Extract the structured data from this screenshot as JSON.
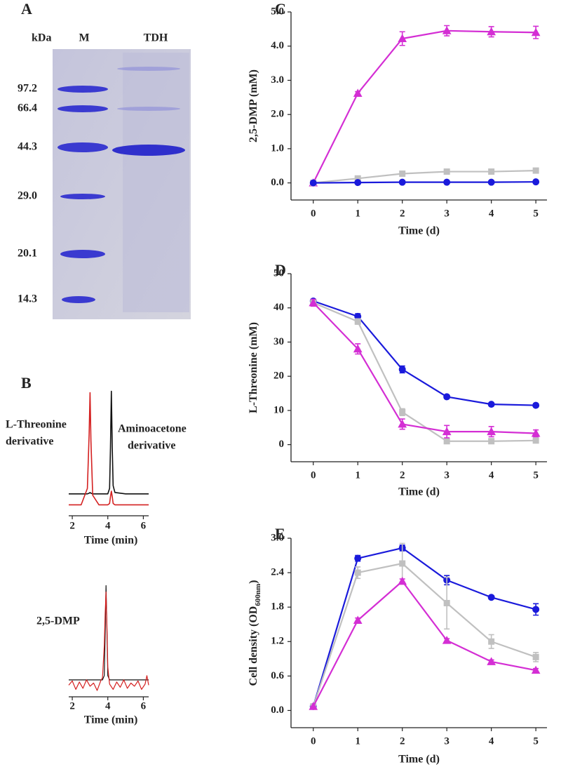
{
  "gel": {
    "panel_label": "A",
    "header": [
      "kDa",
      "M",
      "TDH"
    ],
    "markers": [
      "97.2",
      "66.4",
      "44.3",
      "29.0",
      "20.1",
      "14.3"
    ]
  },
  "chart_data": [
    {
      "type": "line",
      "panel_label": "B",
      "x_label": "Time (min)",
      "labels": [
        "L-Threonine",
        "derivative",
        "Aminoacetone",
        "derivative"
      ],
      "x": [
        1.8,
        2.5,
        2.85,
        2.95,
        3.0,
        3.05,
        3.15,
        3.5,
        4.0,
        4.1,
        4.15,
        4.2,
        4.25,
        4.3,
        4.4,
        5.0,
        6.3
      ],
      "xlim": [
        1.8,
        6.3
      ],
      "xticks": [
        2,
        4,
        6
      ],
      "ylim": [
        0,
        100
      ],
      "series": [
        {
          "color": "#111111",
          "values": [
            16,
            16,
            16,
            16.5,
            17,
            16.5,
            16,
            16,
            16,
            20,
            50,
            91,
            50,
            22,
            17,
            16,
            16
          ]
        },
        {
          "color": "#d42020",
          "values": [
            8,
            8,
            20,
            60,
            90,
            55,
            15,
            8,
            8,
            9,
            14,
            18,
            14,
            9,
            8,
            8,
            8
          ]
        }
      ]
    },
    {
      "type": "line",
      "x_label": "Time (min)",
      "labels": [
        "2,5-DMP"
      ],
      "x": [
        1.8,
        2.0,
        2.2,
        2.4,
        2.6,
        2.8,
        3.0,
        3.2,
        3.4,
        3.6,
        3.7,
        3.8,
        3.85,
        3.9,
        3.95,
        4.0,
        4.1,
        4.3,
        4.5,
        4.7,
        4.9,
        5.1,
        5.3,
        5.5,
        5.7,
        5.9,
        6.1,
        6.2,
        6.3
      ],
      "xlim": [
        1.8,
        6.3
      ],
      "xticks": [
        2,
        4,
        6
      ],
      "ylim": [
        -8,
        100
      ],
      "series": [
        {
          "color": "#111111",
          "values": [
            8,
            8,
            8,
            8,
            8,
            8,
            8,
            8,
            8,
            8,
            8,
            12,
            50,
            97,
            55,
            12,
            8,
            8,
            8,
            8,
            8,
            8,
            8,
            8,
            8,
            8,
            8,
            8,
            8
          ]
        },
        {
          "color": "#d42020",
          "values": [
            3,
            7,
            -1,
            6,
            0,
            8,
            2,
            5,
            -2,
            7,
            10,
            40,
            70,
            91,
            60,
            20,
            4,
            -1,
            6,
            1,
            8,
            0,
            5,
            2,
            7,
            -1,
            4,
            12,
            3
          ]
        }
      ]
    },
    {
      "type": "line",
      "panel_label": "C",
      "x_label": "Time (d)",
      "y_label": "2,5-DMP (mM)",
      "x": [
        0,
        1,
        2,
        3,
        4,
        5
      ],
      "xlim": [
        -0.5,
        5.25
      ],
      "xticks": [
        0,
        1,
        2,
        3,
        4,
        5
      ],
      "ylim": [
        -0.5,
        5.0
      ],
      "yticks": [
        {
          "value": 0,
          "label": "0.0"
        },
        {
          "value": 1,
          "label": "1.0"
        },
        {
          "value": 2,
          "label": "2.0"
        },
        {
          "value": 3,
          "label": "3.0"
        },
        {
          "value": 4,
          "label": "4.0"
        },
        {
          "value": 5,
          "label": "5.0"
        }
      ],
      "series": [
        {
          "color": "#d42ed4",
          "marker": "triangle",
          "values": [
            0,
            2.62,
            4.22,
            4.45,
            4.42,
            4.4
          ],
          "errors": [
            0,
            0.05,
            0.2,
            0.15,
            0.15,
            0.18
          ]
        },
        {
          "color": "#c0c0c0",
          "marker": "square",
          "values": [
            0,
            0.13,
            0.27,
            0.33,
            0.33,
            0.36
          ],
          "errors": [
            0,
            0.03,
            0.03,
            0.03,
            0.03,
            0.03
          ]
        },
        {
          "color": "#1a1adb",
          "marker": "circle",
          "values": [
            0,
            0.01,
            0.02,
            0.02,
            0.02,
            0.03
          ],
          "errors": [
            0,
            0,
            0,
            0,
            0,
            0
          ]
        }
      ]
    },
    {
      "type": "line",
      "panel_label": "D",
      "x_label": "Time (d)",
      "y_label": "L-Threonine (mM)",
      "x": [
        0,
        1,
        2,
        3,
        4,
        5
      ],
      "xlim": [
        -0.5,
        5.25
      ],
      "xticks": [
        0,
        1,
        2,
        3,
        4,
        5
      ],
      "ylim": [
        -5,
        50
      ],
      "yticks": [
        0,
        10,
        20,
        30,
        40,
        50
      ],
      "series": [
        {
          "color": "#1a1adb",
          "marker": "circle",
          "values": [
            42,
            37.5,
            22,
            14,
            11.8,
            11.5
          ],
          "errors": [
            0.5,
            0.8,
            1,
            0.5,
            0.4,
            0.5
          ]
        },
        {
          "color": "#c0c0c0",
          "marker": "square",
          "values": [
            41.5,
            36,
            9.5,
            1,
            1,
            1.2
          ],
          "errors": [
            0.5,
            0.8,
            1,
            0.5,
            0.5,
            0.5
          ]
        },
        {
          "color": "#d42ed4",
          "marker": "triangle",
          "values": [
            41.5,
            28,
            6,
            3.8,
            3.8,
            3.3
          ],
          "errors": [
            1,
            1.5,
            1.5,
            1.8,
            1.5,
            1
          ]
        }
      ]
    },
    {
      "type": "line",
      "panel_label": "E",
      "x_label": "Time (d)",
      "y_label": "Cell density (OD",
      "y_label_sub": "600nm",
      "y_label_end": ")",
      "x": [
        0,
        1,
        2,
        3,
        4,
        5
      ],
      "xlim": [
        -0.5,
        5.25
      ],
      "xticks": [
        0,
        1,
        2,
        3,
        4,
        5
      ],
      "ylim": [
        -0.3,
        3.0
      ],
      "yticks": [
        {
          "value": 0,
          "label": "0.0"
        },
        {
          "value": 0.6,
          "label": "0.6"
        },
        {
          "value": 1.2,
          "label": "1.2"
        },
        {
          "value": 1.8,
          "label": "1.8"
        },
        {
          "value": 2.4,
          "label": "2.4"
        },
        {
          "value": 3,
          "label": "3.0"
        }
      ],
      "series": [
        {
          "color": "#1a1adb",
          "marker": "circle",
          "values": [
            0.07,
            2.65,
            2.83,
            2.27,
            1.97,
            1.76
          ],
          "errors": [
            0,
            0.05,
            0.05,
            0.08,
            0.03,
            0.1
          ]
        },
        {
          "color": "#c0c0c0",
          "marker": "square",
          "values": [
            0.07,
            2.4,
            2.56,
            1.87,
            1.2,
            0.93
          ],
          "errors": [
            0,
            0.1,
            0.35,
            0.45,
            0.12,
            0.08
          ]
        },
        {
          "color": "#d42ed4",
          "marker": "triangle",
          "values": [
            0.07,
            1.57,
            2.25,
            1.22,
            0.85,
            0.7
          ],
          "errors": [
            0,
            0.04,
            0.04,
            0.03,
            0.03,
            0.03
          ]
        }
      ]
    }
  ]
}
